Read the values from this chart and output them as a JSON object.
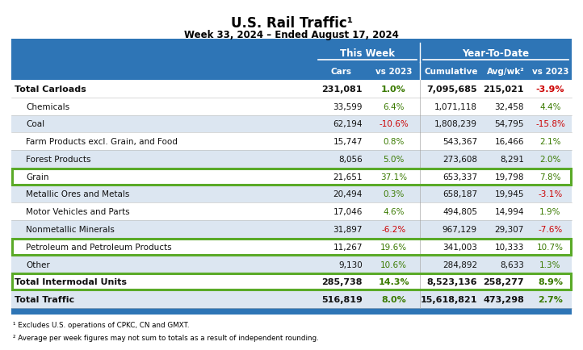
{
  "title": "U.S. Rail Traffic¹",
  "subtitle": "Week 33, 2024 – Ended August 17, 2024",
  "header_bg": "#2E75B6",
  "green_box_color": "#5AAA28",
  "green_text_color": "#3A7A00",
  "red_text_color": "#CC0000",
  "black_text": "#111111",
  "alt_row_bg": "#DCE6F1",
  "white_row_bg": "#FFFFFF",
  "rows": [
    {
      "label": "Total Carloads",
      "bold": true,
      "indent": false,
      "cars": "231,081",
      "vs2023_week": "1.0%",
      "vs2023_week_color": "green",
      "cumulative": "7,095,685",
      "avgwk": "215,021",
      "vs2023_ytd": "-3.9%",
      "vs2023_ytd_color": "red",
      "row_bg": "white",
      "green_box": false
    },
    {
      "label": "Chemicals",
      "bold": false,
      "indent": true,
      "cars": "33,599",
      "vs2023_week": "6.4%",
      "vs2023_week_color": "green",
      "cumulative": "1,071,118",
      "avgwk": "32,458",
      "vs2023_ytd": "4.4%",
      "vs2023_ytd_color": "green",
      "row_bg": "white",
      "green_box": false
    },
    {
      "label": "Coal",
      "bold": false,
      "indent": true,
      "cars": "62,194",
      "vs2023_week": "-10.6%",
      "vs2023_week_color": "red",
      "cumulative": "1,808,239",
      "avgwk": "54,795",
      "vs2023_ytd": "-15.8%",
      "vs2023_ytd_color": "red",
      "row_bg": "alt",
      "green_box": false
    },
    {
      "label": "Farm Products excl. Grain, and Food",
      "bold": false,
      "indent": true,
      "cars": "15,747",
      "vs2023_week": "0.8%",
      "vs2023_week_color": "green",
      "cumulative": "543,367",
      "avgwk": "16,466",
      "vs2023_ytd": "2.1%",
      "vs2023_ytd_color": "green",
      "row_bg": "white",
      "green_box": false
    },
    {
      "label": "Forest Products",
      "bold": false,
      "indent": true,
      "cars": "8,056",
      "vs2023_week": "5.0%",
      "vs2023_week_color": "green",
      "cumulative": "273,608",
      "avgwk": "8,291",
      "vs2023_ytd": "2.0%",
      "vs2023_ytd_color": "green",
      "row_bg": "alt",
      "green_box": false
    },
    {
      "label": "Grain",
      "bold": false,
      "indent": true,
      "cars": "21,651",
      "vs2023_week": "37.1%",
      "vs2023_week_color": "green",
      "cumulative": "653,337",
      "avgwk": "19,798",
      "vs2023_ytd": "7.8%",
      "vs2023_ytd_color": "green",
      "row_bg": "white",
      "green_box": true
    },
    {
      "label": "Metallic Ores and Metals",
      "bold": false,
      "indent": true,
      "cars": "20,494",
      "vs2023_week": "0.3%",
      "vs2023_week_color": "green",
      "cumulative": "658,187",
      "avgwk": "19,945",
      "vs2023_ytd": "-3.1%",
      "vs2023_ytd_color": "red",
      "row_bg": "alt",
      "green_box": false
    },
    {
      "label": "Motor Vehicles and Parts",
      "bold": false,
      "indent": true,
      "cars": "17,046",
      "vs2023_week": "4.6%",
      "vs2023_week_color": "green",
      "cumulative": "494,805",
      "avgwk": "14,994",
      "vs2023_ytd": "1.9%",
      "vs2023_ytd_color": "green",
      "row_bg": "white",
      "green_box": false
    },
    {
      "label": "Nonmetallic Minerals",
      "bold": false,
      "indent": true,
      "cars": "31,897",
      "vs2023_week": "-6.2%",
      "vs2023_week_color": "red",
      "cumulative": "967,129",
      "avgwk": "29,307",
      "vs2023_ytd": "-7.6%",
      "vs2023_ytd_color": "red",
      "row_bg": "alt",
      "green_box": false
    },
    {
      "label": "Petroleum and Petroleum Products",
      "bold": false,
      "indent": true,
      "cars": "11,267",
      "vs2023_week": "19.6%",
      "vs2023_week_color": "green",
      "cumulative": "341,003",
      "avgwk": "10,333",
      "vs2023_ytd": "10.7%",
      "vs2023_ytd_color": "green",
      "row_bg": "white",
      "green_box": true
    },
    {
      "label": "Other",
      "bold": false,
      "indent": true,
      "cars": "9,130",
      "vs2023_week": "10.6%",
      "vs2023_week_color": "green",
      "cumulative": "284,892",
      "avgwk": "8,633",
      "vs2023_ytd": "1.3%",
      "vs2023_ytd_color": "green",
      "row_bg": "alt",
      "green_box": false
    },
    {
      "label": "Total Intermodal Units",
      "bold": true,
      "indent": false,
      "cars": "285,738",
      "vs2023_week": "14.3%",
      "vs2023_week_color": "green",
      "cumulative": "8,523,136",
      "avgwk": "258,277",
      "vs2023_ytd": "8.9%",
      "vs2023_ytd_color": "green",
      "row_bg": "white",
      "green_box": true
    },
    {
      "label": "Total Traffic",
      "bold": true,
      "indent": false,
      "cars": "516,819",
      "vs2023_week": "8.0%",
      "vs2023_week_color": "green",
      "cumulative": "15,618,821",
      "avgwk": "473,298",
      "vs2023_ytd": "2.7%",
      "vs2023_ytd_color": "green",
      "row_bg": "alt",
      "green_box": false
    }
  ],
  "footnotes": [
    "¹ Excludes U.S. operations of CPKC, CN and GMXT.",
    "² Average per week figures may not sum to totals as a result of independent rounding."
  ]
}
